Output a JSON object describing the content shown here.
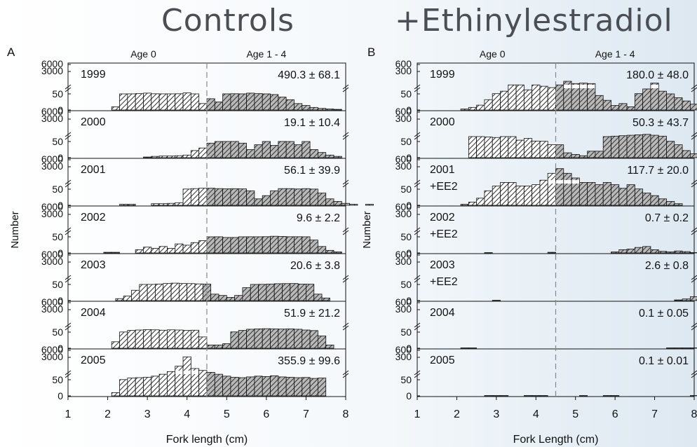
{
  "headings": {
    "left": "Controls",
    "right": "+Ethinylestradiol"
  },
  "colors": {
    "age0_fill": "#ffffff",
    "age1_fill": "#b9b9b9",
    "hatch": "#333333",
    "axis": "#111111",
    "divider_line": "#888888",
    "background_right": "#dde8f1"
  },
  "chart_data": [
    {
      "type": "bar",
      "panel_label": "A",
      "age_class_labels": [
        "Age 0",
        "Age 1 - 4"
      ],
      "ylabel": "Number",
      "xlabel": "Fork length (cm)",
      "xlim": [
        1,
        8
      ],
      "x_ticks": [
        "1",
        "2",
        "3",
        "4",
        "5",
        "6",
        "7",
        "8"
      ],
      "age_class_divider_cm": 4.5,
      "bin_width_cm": 0.2,
      "y_tick_labels": {
        "break_upper": [
          "6000",
          "3000"
        ],
        "lower": [
          "50",
          "0"
        ]
      },
      "subpanels": [
        {
          "year": "1999",
          "extra_label": "",
          "annotation": "490.3 ± 68.1",
          "bins_start": 2.1,
          "values": [
            10,
            52,
            60,
            120,
            250,
            80,
            60,
            60,
            80,
            300,
            50,
            20,
            35,
            25,
            60,
            90,
            60,
            250,
            120,
            55,
            48,
            40,
            32,
            20,
            14,
            8,
            5,
            3,
            2
          ]
        },
        {
          "year": "2000",
          "extra_label": "",
          "annotation": "19.1 ± 10.4",
          "bins_start": 2.9,
          "values": [
            2,
            4,
            5,
            5,
            6,
            8,
            22,
            30,
            45,
            55,
            66,
            70,
            45,
            25,
            40,
            60,
            38,
            70,
            55,
            40,
            52,
            25,
            16,
            8,
            4
          ]
        },
        {
          "year": "2001",
          "extra_label": "",
          "annotation": "56.1 ± 39.9",
          "bins_start": 2.3,
          "values": [
            3,
            3,
            0,
            0,
            5,
            5,
            6,
            8,
            80,
            200,
            300,
            300,
            200,
            150,
            180,
            120,
            45,
            20,
            30,
            45,
            200,
            200,
            100,
            200,
            80,
            38,
            20,
            12,
            6,
            3,
            0,
            3
          ]
        },
        {
          "year": "2002",
          "extra_label": "",
          "annotation": "9.6 ± 2.2",
          "bins_start": 1.7,
          "values": [
            0,
            2,
            2,
            0,
            0,
            10,
            18,
            14,
            20,
            14,
            28,
            24,
            32,
            38,
            52,
            62,
            48,
            48,
            58,
            70,
            64,
            90,
            200,
            150,
            80,
            78,
            58,
            40,
            20,
            8,
            3
          ]
        },
        {
          "year": "2003",
          "extra_label": "",
          "annotation": "20.6 ± 3.8",
          "bins_start": 2.2,
          "values": [
            6,
            14,
            32,
            58,
            68,
            150,
            300,
            400,
            300,
            280,
            200,
            150,
            20,
            16,
            10,
            16,
            40,
            58,
            80,
            150,
            250,
            280,
            300,
            150,
            120,
            20,
            8
          ]
        },
        {
          "year": "2004",
          "extra_label": "",
          "annotation": "51.9 ± 21.2",
          "bins_start": 2.1,
          "values": [
            20,
            80,
            500,
            600,
            700,
            650,
            550,
            650,
            600,
            500,
            550,
            35,
            10,
            10,
            14,
            100,
            500,
            800,
            900,
            950,
            900,
            850,
            900,
            800,
            600,
            450,
            38,
            10
          ]
        },
        {
          "year": "2005",
          "extra_label": "",
          "annotation": "355.9 ± 99.6",
          "bins_start": 2.1,
          "values": [
            10,
            85,
            500,
            600,
            700,
            1000,
            1500,
            2200,
            3500,
            5500,
            3000,
            2500,
            2000,
            1500,
            1000,
            700,
            600,
            800,
            1000,
            900,
            1100,
            800,
            700,
            600,
            650,
            400,
            500
          ]
        }
      ]
    },
    {
      "type": "bar",
      "panel_label": "B",
      "age_class_labels": [
        "Age 0",
        "Age 1 - 4"
      ],
      "ylabel": "Number",
      "xlabel": "Fork Length (cm)",
      "xlim": [
        1,
        8
      ],
      "x_ticks": [
        "1",
        "2",
        "3",
        "4",
        "5",
        "6",
        "7",
        "8"
      ],
      "age_class_divider_cm": 4.5,
      "bin_width_cm": 0.2,
      "y_tick_labels": {
        "break_upper": [
          "600",
          "300"
        ],
        "lower": [
          "50",
          "0"
        ]
      },
      "subpanels": [
        {
          "year": "1999",
          "extra_label": "",
          "annotation": "180.0 ± 48.0",
          "bins_start": 1.7,
          "values": [
            0,
            0,
            3,
            8,
            15,
            32,
            55,
            110,
            250,
            250,
            140,
            250,
            220,
            190,
            250,
            330,
            280,
            290,
            280,
            45,
            30,
            14,
            20,
            10,
            55,
            160,
            290,
            110,
            50,
            38,
            28,
            18,
            12,
            6,
            6
          ]
        },
        {
          "year": "2000",
          "extra_label": "",
          "annotation": "50.3 ± 43.7",
          "bins_start": 2.3,
          "values": [
            160,
            160,
            150,
            140,
            160,
            160,
            80,
            120,
            60,
            55,
            40,
            40,
            15,
            10,
            6,
            20,
            20,
            160,
            170,
            180,
            190,
            200,
            210,
            190,
            170,
            55,
            40,
            22,
            12,
            6
          ]
        },
        {
          "year": "2001",
          "extra_label": "+EE2",
          "annotation": "117.7 ± 20.0",
          "bins_start": 1.9,
          "values": [
            0,
            3,
            10,
            22,
            45,
            120,
            200,
            200,
            120,
            120,
            150,
            250,
            400,
            500,
            400,
            300,
            200,
            200,
            150,
            200,
            150,
            70,
            150,
            55,
            38,
            30,
            20,
            12,
            5,
            0,
            0,
            3
          ]
        },
        {
          "year": "2002",
          "extra_label": "+EE2",
          "annotation": "0.7 ± 0.2",
          "bins_start": 2.7,
          "values": [
            1,
            0,
            0,
            0,
            0,
            0,
            0,
            0,
            2,
            0,
            0,
            0,
            0,
            0,
            0,
            0,
            3,
            10,
            12,
            17,
            20,
            10,
            5,
            3,
            6,
            4,
            1
          ]
        },
        {
          "year": "2003",
          "extra_label": "+EE2",
          "annotation": "2.6 ± 0.8",
          "bins_start": 2.9,
          "values": [
            1,
            0,
            0,
            0,
            0,
            0,
            0,
            0,
            0,
            0,
            0,
            0,
            0,
            0,
            0,
            0,
            0,
            0,
            0,
            0,
            0,
            0,
            0,
            2,
            5,
            12,
            35,
            75,
            70,
            45,
            30,
            12,
            5,
            1,
            1
          ]
        },
        {
          "year": "2004",
          "extra_label": "",
          "annotation": "0.1 ± 0.05",
          "bins_start": 2.1,
          "values": [
            1,
            1,
            0,
            0,
            0,
            0,
            0,
            0,
            0,
            0,
            0,
            0,
            0,
            0,
            0,
            0,
            0,
            0,
            0,
            0,
            0,
            0,
            0,
            0,
            0,
            0,
            1,
            1,
            1,
            1,
            0,
            0,
            0,
            0,
            0,
            1
          ]
        },
        {
          "year": "2005",
          "extra_label": "",
          "annotation": "0.1 ± 0.01",
          "bins_start": 2.7,
          "values": [
            1,
            1,
            1,
            0,
            0,
            1,
            1,
            1,
            0,
            0,
            0,
            0,
            1,
            0,
            0,
            1,
            1,
            0,
            0,
            0,
            0,
            0,
            0,
            0,
            0,
            0,
            1
          ]
        }
      ]
    }
  ]
}
